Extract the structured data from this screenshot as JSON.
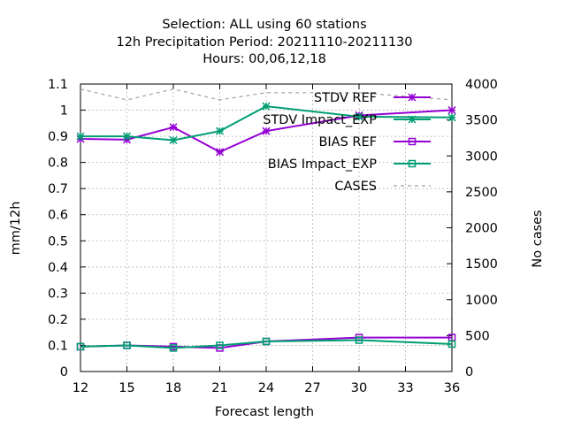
{
  "chart_data": {
    "type": "line",
    "title_lines": [
      "Selection: ALL using    60 stations",
      "12h Precipitation    Period: 20211110-20211130",
      "Hours:  00,06,12,18"
    ],
    "xlabel": "Forecast length",
    "ylabel": "mm/12h",
    "y2label": "No cases",
    "xlim": [
      12,
      36
    ],
    "ylim": [
      0,
      1.1
    ],
    "y2lim": [
      0,
      4000
    ],
    "x_ticks": [
      "12",
      "15",
      "18",
      "21",
      "24",
      "27",
      "30",
      "33",
      "36"
    ],
    "y_ticks": [
      "0",
      "0.1",
      "0.2",
      "0.3",
      "0.4",
      "0.5",
      "0.6",
      "0.7",
      "0.8",
      "0.9",
      "1",
      "1.1"
    ],
    "y2_ticks": [
      "0",
      "500",
      "1000",
      "1500",
      "2000",
      "2500",
      "3000",
      "3500",
      "4000"
    ],
    "grid": true,
    "legend_position": "top-right",
    "x": [
      12,
      15,
      18,
      21,
      24,
      30,
      36
    ],
    "series": [
      {
        "name": "STDV REF",
        "axis": "y1",
        "color": "#9400d3",
        "marker": "star",
        "dashed": false,
        "values": [
          0.89,
          0.887,
          0.935,
          0.84,
          0.92,
          0.98,
          1.0
        ]
      },
      {
        "name": "STDV Impact_EXP",
        "axis": "y1",
        "color": "#009e73",
        "marker": "star",
        "dashed": false,
        "values": [
          0.9,
          0.9,
          0.885,
          0.92,
          1.015,
          0.975,
          0.972
        ]
      },
      {
        "name": "BIAS REF",
        "axis": "y1",
        "color": "#9400d3",
        "marker": "square",
        "dashed": false,
        "values": [
          0.095,
          0.1,
          0.095,
          0.09,
          0.115,
          0.13,
          0.13
        ]
      },
      {
        "name": "BIAS Impact_EXP",
        "axis": "y1",
        "color": "#009e73",
        "marker": "square",
        "dashed": false,
        "values": [
          0.095,
          0.1,
          0.09,
          0.1,
          0.115,
          0.12,
          0.105
        ]
      },
      {
        "name": "CASES",
        "axis": "y2",
        "color": "#a0a0a0",
        "marker": "none",
        "dashed": true,
        "values": [
          3930,
          3780,
          3930,
          3780,
          3880,
          3880,
          3780
        ]
      }
    ]
  }
}
